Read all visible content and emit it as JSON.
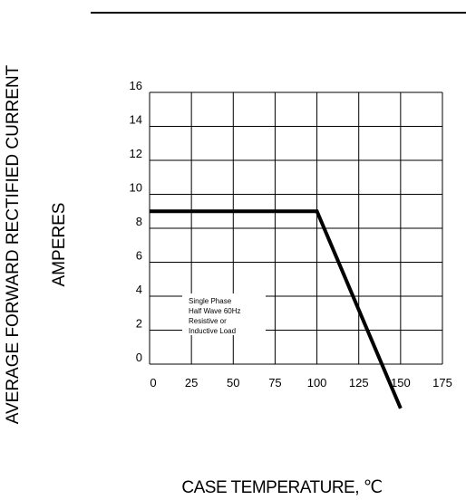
{
  "chart_data": {
    "type": "line",
    "title": "",
    "xlabel": "CASE  TEMPERATURE, ℃",
    "ylabel_lines": [
      "AVERAGE FORWARD RECTIFIED CURRENT",
      "AMPERES"
    ],
    "x_ticks": [
      "0",
      "25",
      "50",
      "75",
      "100",
      "125",
      "150",
      "175"
    ],
    "y_ticks": [
      "0",
      "2",
      "4",
      "6",
      "8",
      "10",
      "12",
      "14",
      "16"
    ],
    "xlim": [
      0,
      175
    ],
    "ylim": [
      0,
      16
    ],
    "grid": true,
    "series": [
      {
        "x": [
          0,
          100,
          150
        ],
        "y": [
          9,
          9,
          -2.6
        ]
      }
    ],
    "annotation_lines": [
      "Single Phase",
      "Half Wave 60Hz",
      "Resistive or",
      "Inductive Load"
    ]
  }
}
